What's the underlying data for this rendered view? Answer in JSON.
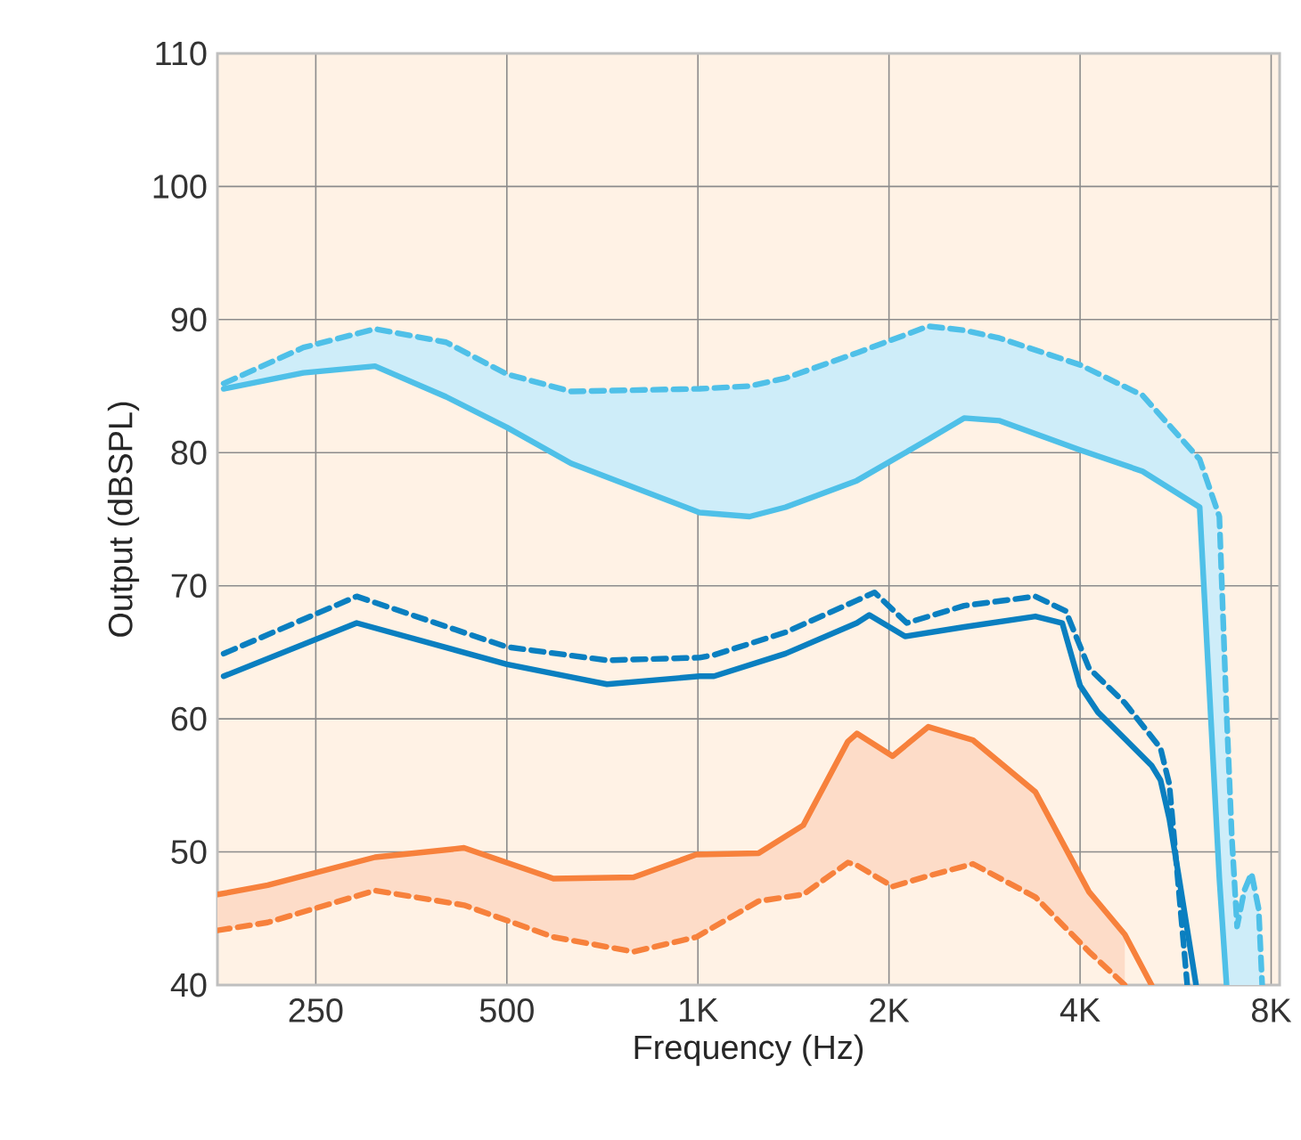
{
  "chart_data": {
    "type": "line",
    "xlabel": "Frequency (Hz)",
    "ylabel": "Output (dBSPL)",
    "log": "x",
    "grid": true,
    "xlim": [
      175,
      8250
    ],
    "ylim": [
      40,
      110
    ],
    "xticks": [
      {
        "value": 250,
        "label": "250"
      },
      {
        "value": 500,
        "label": "500"
      },
      {
        "value": 1000,
        "label": "1K"
      },
      {
        "value": 2000,
        "label": "2K"
      },
      {
        "value": 4000,
        "label": "4K"
      },
      {
        "value": 8000,
        "label": "8K"
      }
    ],
    "yticks": [
      40,
      50,
      60,
      70,
      80,
      90,
      100,
      110
    ],
    "series": [
      {
        "color": "#4fc0e8",
        "line_style": "solid",
        "x": [
          179,
          239,
          310,
          401,
          500,
          631,
          1006,
          1206,
          1374,
          1780,
          2307,
          2626,
          2988,
          4000,
          5018,
          6173,
          6630,
          6805
        ],
        "values": [
          84.8,
          86.0,
          86.5,
          84.2,
          81.9,
          79.2,
          75.5,
          75.2,
          75.9,
          77.9,
          81.0,
          82.6,
          82.4,
          80.2,
          78.6,
          75.9,
          48,
          40
        ]
      },
      {
        "color": "#4fc0e8",
        "line_style": "dashed",
        "x": [
          179,
          239,
          310,
          401,
          500,
          631,
          1006,
          1206,
          1374,
          1780,
          2307,
          2626,
          2988,
          4000,
          5018,
          6173,
          6630,
          6805,
          6937,
          7071,
          7258,
          7450,
          7647,
          7745
        ],
        "values": [
          85.2,
          87.9,
          89.3,
          88.3,
          85.9,
          84.6,
          84.8,
          85.0,
          85.6,
          87.5,
          89.5,
          89.2,
          88.6,
          86.6,
          84.3,
          79.5,
          75.2,
          60.5,
          51.1,
          44.4,
          47.1,
          48.4,
          45.7,
          40
        ],
        "lower": [
          84.8,
          86.0,
          86.5,
          84.2,
          81.9,
          79.2,
          75.5,
          75.2,
          75.9,
          77.9,
          81.0,
          82.6,
          82.4,
          80.2,
          78.6,
          75.9,
          48,
          40,
          40,
          40,
          40,
          40,
          40,
          40
        ],
        "upper": [
          85.2,
          87.9,
          89.3,
          88.3,
          85.9,
          84.6,
          84.8,
          85.0,
          85.6,
          87.5,
          89.5,
          89.2,
          88.6,
          86.6,
          84.3,
          79.5,
          75.2,
          60.5,
          51.1,
          44.4,
          47.1,
          48.4,
          45.7,
          40
        ]
      },
      {
        "color": "#0a7fc0",
        "line_style": "solid",
        "x": [
          179,
          290,
          500,
          719,
          1006,
          1060,
          1374,
          1780,
          1862,
          2120,
          2626,
          3402,
          3750,
          4000,
          4267,
          4705,
          5184,
          5355,
          5529,
          5712,
          6093
        ],
        "values": [
          63.2,
          67.2,
          64.1,
          62.6,
          63.2,
          63.2,
          64.9,
          67.2,
          67.8,
          66.2,
          66.9,
          67.7,
          67.2,
          62.5,
          60.5,
          58.5,
          56.5,
          55.4,
          52.5,
          48.4,
          40
        ]
      },
      {
        "color": "#0a7fc0",
        "line_style": "dashed",
        "x": [
          179,
          290,
          500,
          719,
          1006,
          1060,
          1374,
          1780,
          1898,
          2133,
          2626,
          3402,
          3798,
          4132,
          4705,
          5355,
          5529,
          5901
        ],
        "values": [
          64.9,
          69.2,
          65.4,
          64.4,
          64.6,
          64.8,
          66.5,
          68.9,
          69.5,
          67.2,
          68.5,
          69.2,
          68.1,
          63.8,
          61.2,
          57.8,
          55.1,
          40
        ]
      },
      {
        "color": "#f7813c",
        "line_style": "solid",
        "x": [
          175,
          210,
          310,
          428,
          592,
          792,
          994,
          1246,
          1465,
          1723,
          1780,
          2026,
          2307,
          2712,
          3402,
          4132,
          4705,
          5184
        ],
        "values": [
          46.8,
          47.5,
          49.6,
          50.3,
          48.0,
          48.1,
          49.8,
          49.9,
          52,
          58.3,
          58.9,
          57.2,
          59.4,
          58.4,
          54.5,
          47.0,
          43.8,
          40
        ]
      },
      {
        "color": "#f7813c",
        "line_style": "dashed",
        "x": [
          175,
          210,
          310,
          428,
          592,
          792,
          994,
          1246,
          1465,
          1723,
          1780,
          2026,
          2307,
          2712,
          3402,
          4132,
          4705
        ],
        "values": [
          44.1,
          44.7,
          47.1,
          46.0,
          43.6,
          42.5,
          43.6,
          46.3,
          46.8,
          49.2,
          49.0,
          47.4,
          48.2,
          49.1,
          46.6,
          42.5,
          40
        ],
        "lower": [
          44.1,
          44.7,
          47.1,
          46.0,
          43.6,
          42.5,
          43.6,
          46.3,
          46.8,
          49.2,
          49.0,
          47.4,
          48.2,
          49.1,
          46.6,
          42.5,
          40
        ],
        "upper": [
          46.8,
          47.5,
          49.6,
          50.3,
          48.0,
          48.1,
          49.8,
          49.9,
          52,
          58.3,
          58.9,
          57.2,
          59.4,
          58.4,
          54.5,
          47.0,
          43.8
        ]
      }
    ]
  }
}
